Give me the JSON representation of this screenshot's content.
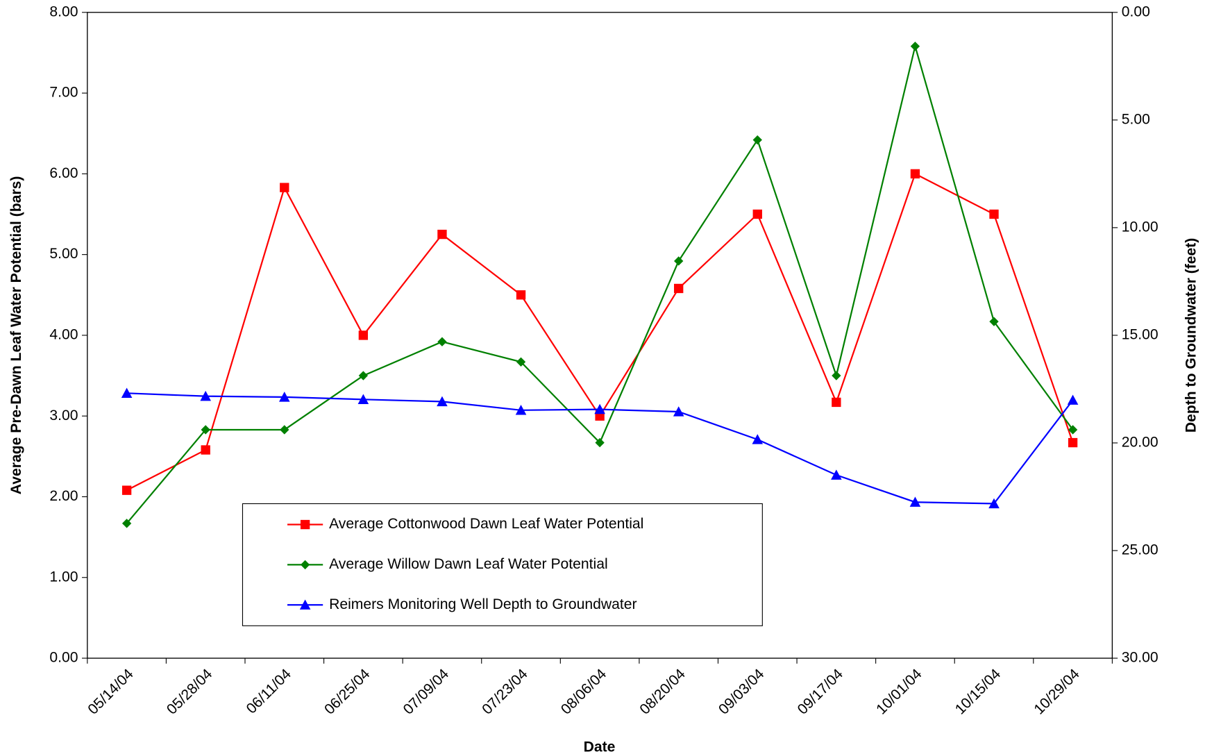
{
  "chart_data": {
    "type": "line",
    "x_label": "Date",
    "y_label": "Average Pre-Dawn Leaf Water Potential (bars)",
    "y2_label": "Depth to Groundwater (feet)",
    "categories": [
      "05/14/04",
      "05/28/04",
      "06/11/04",
      "06/25/04",
      "07/09/04",
      "07/23/04",
      "08/06/04",
      "08/20/04",
      "09/03/04",
      "09/17/04",
      "10/01/04",
      "10/15/04",
      "10/29/04"
    ],
    "ylim": [
      0,
      8
    ],
    "yticks": [
      {
        "value": 0,
        "label": "0.00"
      },
      {
        "value": 1,
        "label": "1.00"
      },
      {
        "value": 2,
        "label": "2.00"
      },
      {
        "value": 3,
        "label": "3.00"
      },
      {
        "value": 4,
        "label": "4.00"
      },
      {
        "value": 5,
        "label": "5.00"
      },
      {
        "value": 6,
        "label": "6.00"
      },
      {
        "value": 7,
        "label": "7.00"
      },
      {
        "value": 8,
        "label": "8.00"
      }
    ],
    "y2lim": [
      30,
      0
    ],
    "y2ticks": [
      {
        "value": 0,
        "label": "0.00"
      },
      {
        "value": 5,
        "label": "5.00"
      },
      {
        "value": 10,
        "label": "10.00"
      },
      {
        "value": 15,
        "label": "15.00"
      },
      {
        "value": 20,
        "label": "20.00"
      },
      {
        "value": 25,
        "label": "25.00"
      },
      {
        "value": 30,
        "label": "30.00"
      }
    ],
    "grid": false,
    "series": [
      {
        "name": "Average Cottonwood Dawn Leaf Water Potential",
        "color": "#ff0000",
        "marker": "square",
        "values": [
          2.08,
          2.58,
          5.83,
          4.0,
          5.25,
          4.5,
          3.0,
          4.58,
          5.5,
          3.17,
          6.0,
          5.5,
          2.67
        ]
      },
      {
        "name": "Average Willow Dawn Leaf Water Potential",
        "color": "#008000",
        "marker": "diamond",
        "values": [
          1.67,
          2.83,
          2.83,
          3.5,
          3.92,
          3.67,
          2.67,
          4.92,
          6.42,
          3.5,
          7.58,
          4.17,
          2.83
        ]
      },
      {
        "name": "Reimers Monitoring Well Depth to Groundwater",
        "color": "#0000ff",
        "marker": "triangle",
        "axis": "y2",
        "values": [
          17.69,
          17.83,
          17.87,
          17.98,
          18.08,
          18.48,
          18.44,
          18.55,
          19.84,
          21.49,
          22.75,
          22.82,
          18.01
        ]
      }
    ]
  }
}
